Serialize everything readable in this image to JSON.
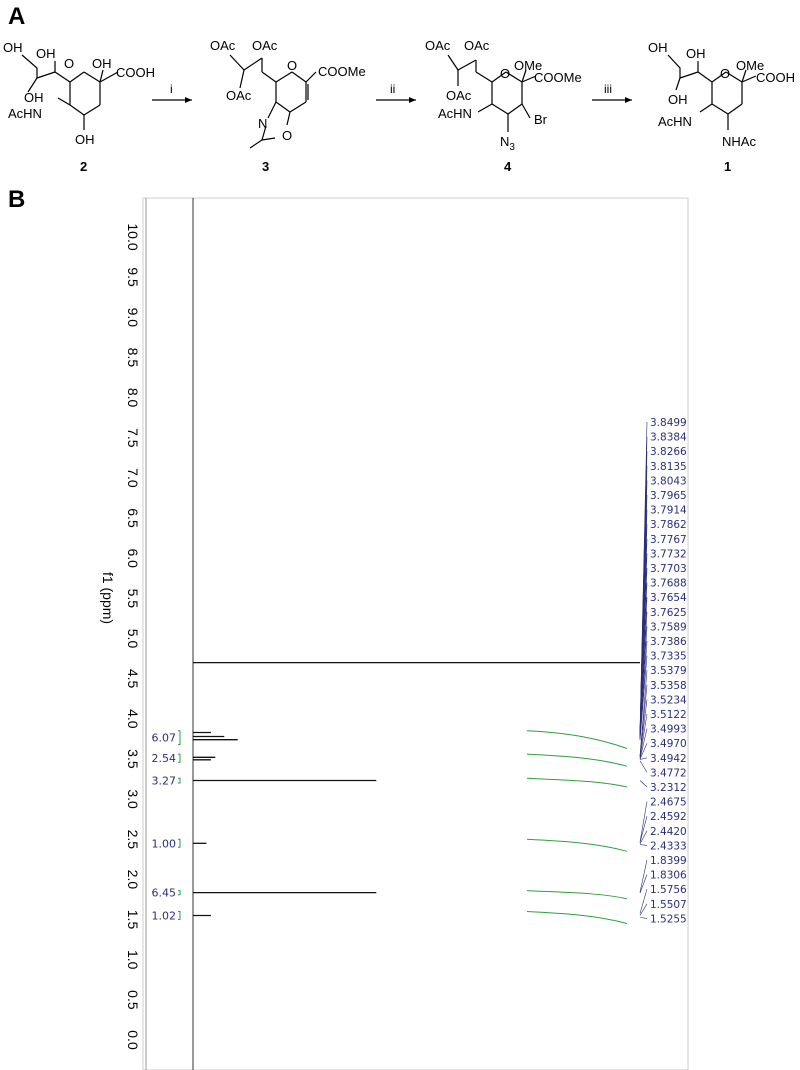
{
  "panels": {
    "a": "A",
    "b": "B"
  },
  "scheme": {
    "reagents": [
      "i",
      "ii",
      "iii"
    ],
    "compounds": [
      "2",
      "3",
      "4",
      "1"
    ],
    "c2": {
      "oh1": "OH",
      "oh2": "OH",
      "oh_ring": "OH",
      "cooh": "COOH",
      "oh3": "OH",
      "achn": "AcHN",
      "oh4": "OH",
      "ring_o": "O"
    },
    "c3": {
      "oac1": "OAc",
      "oac2": "OAc",
      "oac3": "OAc",
      "coome": "COOMe",
      "n": "N",
      "o_ox": "O",
      "ring_o": "O"
    },
    "c4": {
      "oac1": "OAc",
      "oac2": "OAc",
      "oac3": "OAc",
      "ome": "OMe",
      "coome": "COOMe",
      "achn": "AcHN",
      "n3": "N",
      "n3_sub": "3",
      "br": "Br",
      "ring_o": "O"
    },
    "c1": {
      "oh1": "OH",
      "oh2": "OH",
      "ome": "OMe",
      "cooh": "COOH",
      "oh3": "OH",
      "achn": "AcHN",
      "nhac": "NHAc",
      "ring_o": "O"
    }
  },
  "spectrum": {
    "axis_title": "f1 (ppm)",
    "ticks": [
      "10.0",
      "9.5",
      "9.0",
      "8.5",
      "8.0",
      "7.5",
      "7.0",
      "6.5",
      "6.0",
      "5.5",
      "5.0",
      "4.5",
      "4.0",
      "3.5",
      "3.0",
      "2.5",
      "2.0",
      "1.5",
      "1.0",
      "0.5",
      "0.0"
    ],
    "peak_labels": [
      "3.8499",
      "3.8384",
      "3.8266",
      "3.8135",
      "3.8043",
      "3.7965",
      "3.7914",
      "3.7862",
      "3.7767",
      "3.7732",
      "3.7703",
      "3.7688",
      "3.7654",
      "3.7625",
      "3.7589",
      "3.7386",
      "3.7335",
      "3.5379",
      "3.5358",
      "3.5234",
      "3.5122",
      "3.4993",
      "3.4970",
      "3.4942",
      "3.4772",
      "3.2312",
      "2.4675",
      "2.4592",
      "2.4420",
      "2.4333",
      "1.8399",
      "1.8306",
      "1.5756",
      "1.5507",
      "1.5255"
    ],
    "integrals": [
      {
        "label": "6.07",
        "from": 3.85,
        "to": 3.68
      },
      {
        "label": "2.54",
        "from": 3.56,
        "to": 3.46
      },
      {
        "label": "3.27",
        "from": 3.26,
        "to": 3.2
      },
      {
        "label": "1.00",
        "from": 2.5,
        "to": 2.4
      },
      {
        "label": "6.45",
        "from": 1.86,
        "to": 1.81
      },
      {
        "label": "1.02",
        "from": 1.6,
        "to": 1.5
      }
    ]
  },
  "chart_data": {
    "type": "line",
    "title": "",
    "xlabel": "f1 (ppm)",
    "ylabel": "",
    "xlim": [
      10.5,
      -0.5
    ],
    "series": [
      {
        "values": [
          {
            "x": 4.7,
            "y": 1.0
          },
          {
            "x": 3.74,
            "y": 0.1
          },
          {
            "x": 3.78,
            "y": 0.07
          },
          {
            "x": 3.83,
            "y": 0.04
          },
          {
            "x": 3.52,
            "y": 0.05
          },
          {
            "x": 3.49,
            "y": 0.04
          },
          {
            "x": 3.2312,
            "y": 0.41
          },
          {
            "x": 2.45,
            "y": 0.03
          },
          {
            "x": 1.835,
            "y": 0.41
          },
          {
            "x": 1.55,
            "y": 0.04
          }
        ]
      }
    ]
  }
}
